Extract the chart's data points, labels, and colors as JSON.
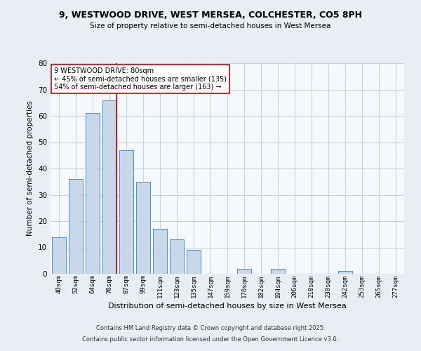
{
  "title": "9, WESTWOOD DRIVE, WEST MERSEA, COLCHESTER, CO5 8PH",
  "subtitle": "Size of property relative to semi-detached houses in West Mersea",
  "xlabel": "Distribution of semi-detached houses by size in West Mersea",
  "ylabel": "Number of semi-detached properties",
  "bar_labels": [
    "40sqm",
    "52sqm",
    "64sqm",
    "76sqm",
    "87sqm",
    "99sqm",
    "111sqm",
    "123sqm",
    "135sqm",
    "147sqm",
    "159sqm",
    "170sqm",
    "182sqm",
    "194sqm",
    "206sqm",
    "218sqm",
    "230sqm",
    "242sqm",
    "253sqm",
    "265sqm",
    "277sqm"
  ],
  "bar_values": [
    14,
    36,
    61,
    66,
    47,
    35,
    17,
    13,
    9,
    0,
    0,
    2,
    0,
    2,
    0,
    0,
    0,
    1,
    0,
    0,
    0
  ],
  "bar_color": "#c8d8e8",
  "bar_edge_color": "#5b8db8",
  "highlight_bar_index": 3,
  "property_size": "80sqm",
  "pct_smaller": 45,
  "count_smaller": 135,
  "pct_larger": 54,
  "count_larger": 163,
  "ylim": [
    0,
    80
  ],
  "yticks": [
    0,
    10,
    20,
    30,
    40,
    50,
    60,
    70,
    80
  ],
  "footnote1": "Contains HM Land Registry data © Crown copyright and database right 2025.",
  "footnote2": "Contains public sector information licensed under the Open Government Licence v3.0.",
  "bg_color": "#e8eef4",
  "plot_bg_color": "#f5f8fc",
  "grid_color": "#c8d4dc",
  "annotation_box_color": "#ffffff",
  "annotation_border_color": "#cc0000",
  "red_line_color": "#cc0000"
}
